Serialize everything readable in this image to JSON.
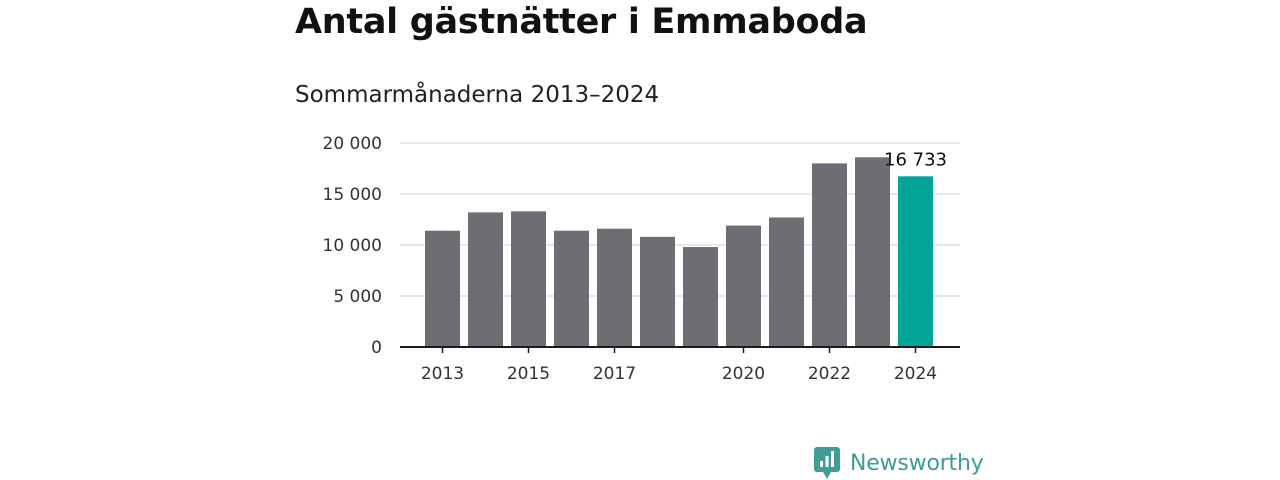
{
  "header": {
    "title": "Antal gästnätter i Emmaboda",
    "subtitle": "Sommarmånaderna 2013–2024"
  },
  "brand": {
    "name": "Newsworthy",
    "icon": "newsworthy-logo-icon",
    "color": "#3f9c96"
  },
  "chart_data": {
    "type": "bar",
    "x": [
      2013,
      2014,
      2015,
      2016,
      2017,
      2018,
      2019,
      2020,
      2021,
      2022,
      2023,
      2024
    ],
    "values": [
      11400,
      13200,
      13300,
      11400,
      11600,
      10800,
      9800,
      11900,
      12700,
      18000,
      18600,
      16733
    ],
    "x_tick_labels": [
      "2013",
      "2015",
      "2017",
      "2020",
      "2022",
      "2024"
    ],
    "y_tick_labels": [
      "0",
      "5 000",
      "10 000",
      "15 000",
      "20 000"
    ],
    "y_ticks": [
      0,
      5000,
      10000,
      15000,
      20000
    ],
    "ylim": [
      0,
      20000
    ],
    "annotations": [
      {
        "x": 2024,
        "text": "16 733"
      }
    ],
    "colors": {
      "bar": "#6e6d73",
      "highlight": "#00a597",
      "grid": "#d9d9d9",
      "axis": "#1a1a1a"
    },
    "highlight_year": 2024,
    "grid": true,
    "title": "",
    "xlabel": "",
    "ylabel": ""
  }
}
